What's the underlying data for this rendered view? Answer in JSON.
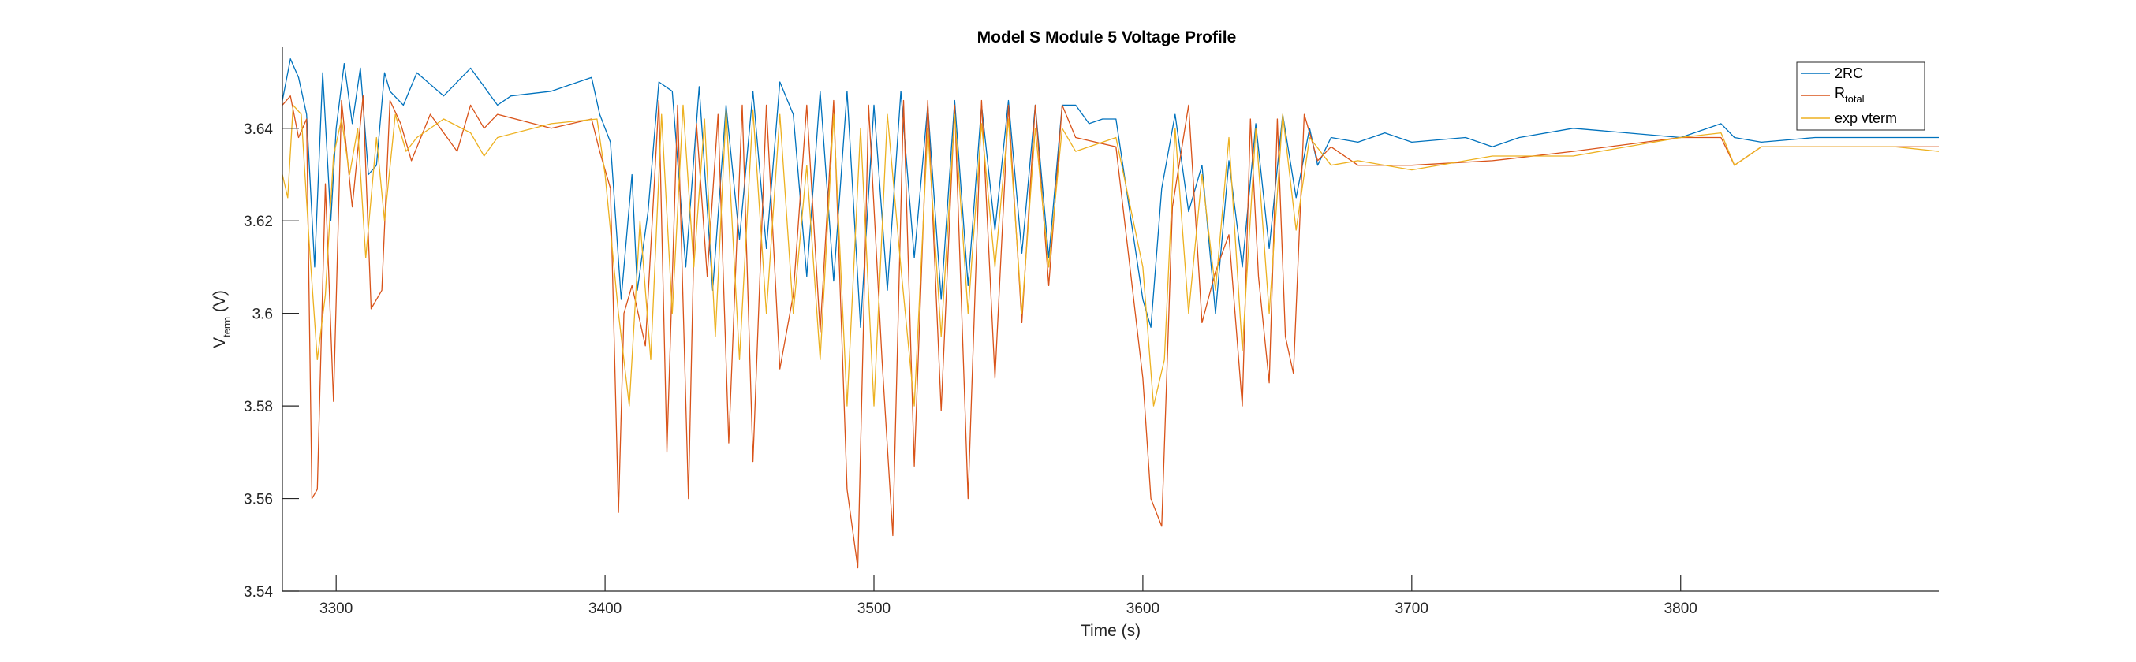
{
  "chart_data": {
    "type": "line",
    "title": "Model S Module 5 Voltage Profile",
    "xlabel": "Time (s)",
    "ylabel": {
      "main": "V",
      "sub": "term",
      "unit": " (V)"
    },
    "xlim": [
      3280,
      3896
    ],
    "ylim": [
      3.54,
      3.6575
    ],
    "x_ticks": [
      3300,
      3400,
      3500,
      3600,
      3700,
      3800
    ],
    "x_tick_labels": [
      "3300",
      "3400",
      "3500",
      "3600",
      "3700",
      "3800"
    ],
    "y_ticks": [
      3.54,
      3.56,
      3.58,
      3.6,
      3.62,
      3.64
    ],
    "y_tick_labels": [
      "3.54",
      "3.56",
      "3.58",
      "3.6",
      "3.62",
      "3.64"
    ],
    "grid": false,
    "legend_position": "top-right",
    "colors": {
      "2RC": "#0072BD",
      "Rtotal": "#D95319",
      "exp": "#EDB120"
    },
    "series": [
      {
        "name": "2RC",
        "legend_main": "2RC",
        "legend_sub": "",
        "color": "#0072BD",
        "x": [
          3280,
          3283,
          3286,
          3289,
          3292,
          3295,
          3298,
          3300,
          3303,
          3306,
          3309,
          3312,
          3315,
          3318,
          3320,
          3325,
          3330,
          3340,
          3350,
          3355,
          3360,
          3365,
          3380,
          3395,
          3398,
          3402,
          3406,
          3410,
          3412,
          3416,
          3420,
          3425,
          3430,
          3435,
          3440,
          3445,
          3450,
          3455,
          3460,
          3465,
          3470,
          3475,
          3480,
          3485,
          3490,
          3495,
          3500,
          3505,
          3510,
          3515,
          3520,
          3525,
          3530,
          3535,
          3540,
          3545,
          3550,
          3555,
          3560,
          3565,
          3570,
          3575,
          3580,
          3585,
          3590,
          3600,
          3603,
          3607,
          3612,
          3617,
          3622,
          3627,
          3632,
          3637,
          3642,
          3647,
          3652,
          3657,
          3662,
          3665,
          3670,
          3680,
          3690,
          3700,
          3720,
          3730,
          3740,
          3760,
          3780,
          3800,
          3815,
          3820,
          3830,
          3850,
          3880,
          3896
        ],
        "y": [
          3.646,
          3.655,
          3.651,
          3.643,
          3.61,
          3.652,
          3.62,
          3.64,
          3.654,
          3.641,
          3.653,
          3.63,
          3.632,
          3.652,
          3.648,
          3.645,
          3.652,
          3.647,
          3.653,
          3.649,
          3.645,
          3.647,
          3.648,
          3.651,
          3.643,
          3.637,
          3.603,
          3.63,
          3.605,
          3.622,
          3.65,
          3.648,
          3.61,
          3.649,
          3.605,
          3.645,
          3.616,
          3.648,
          3.614,
          3.65,
          3.643,
          3.608,
          3.648,
          3.607,
          3.648,
          3.597,
          3.645,
          3.605,
          3.648,
          3.612,
          3.645,
          3.603,
          3.646,
          3.606,
          3.645,
          3.618,
          3.646,
          3.613,
          3.645,
          3.612,
          3.645,
          3.645,
          3.641,
          3.642,
          3.642,
          3.603,
          3.597,
          3.627,
          3.643,
          3.622,
          3.632,
          3.6,
          3.633,
          3.61,
          3.641,
          3.614,
          3.643,
          3.625,
          3.64,
          3.632,
          3.638,
          3.637,
          3.639,
          3.637,
          3.638,
          3.636,
          3.638,
          3.64,
          3.639,
          3.638,
          3.641,
          3.638,
          3.637,
          3.638,
          3.638,
          3.638
        ]
      },
      {
        "name": "Rtotal",
        "legend_main": "R",
        "legend_sub": "total",
        "color": "#D95319",
        "x": [
          3280,
          3283,
          3286,
          3289,
          3291,
          3293,
          3296,
          3299,
          3302,
          3306,
          3310,
          3313,
          3317,
          3320,
          3324,
          3328,
          3335,
          3345,
          3350,
          3355,
          3360,
          3380,
          3395,
          3398,
          3402,
          3405,
          3407,
          3410,
          3415,
          3420,
          3423,
          3427,
          3431,
          3434,
          3438,
          3442,
          3446,
          3451,
          3455,
          3460,
          3465,
          3470,
          3475,
          3480,
          3485,
          3490,
          3494,
          3498,
          3503,
          3507,
          3511,
          3515,
          3520,
          3525,
          3530,
          3535,
          3540,
          3545,
          3550,
          3555,
          3560,
          3565,
          3570,
          3575,
          3590,
          3600,
          3603,
          3607,
          3611,
          3617,
          3622,
          3627,
          3632,
          3637,
          3640,
          3643,
          3647,
          3650,
          3653,
          3656,
          3660,
          3665,
          3670,
          3680,
          3700,
          3730,
          3760,
          3800,
          3815,
          3820,
          3830,
          3850,
          3880,
          3896
        ],
        "y": [
          3.645,
          3.647,
          3.638,
          3.642,
          3.56,
          3.562,
          3.628,
          3.581,
          3.646,
          3.623,
          3.647,
          3.601,
          3.605,
          3.646,
          3.641,
          3.633,
          3.643,
          3.635,
          3.645,
          3.64,
          3.643,
          3.64,
          3.642,
          3.635,
          3.627,
          3.557,
          3.6,
          3.606,
          3.593,
          3.646,
          3.57,
          3.645,
          3.56,
          3.641,
          3.608,
          3.643,
          3.572,
          3.645,
          3.568,
          3.645,
          3.588,
          3.604,
          3.645,
          3.596,
          3.646,
          3.562,
          3.545,
          3.645,
          3.59,
          3.552,
          3.646,
          3.567,
          3.646,
          3.579,
          3.645,
          3.56,
          3.646,
          3.586,
          3.645,
          3.598,
          3.645,
          3.606,
          3.645,
          3.638,
          3.636,
          3.586,
          3.56,
          3.554,
          3.623,
          3.645,
          3.598,
          3.609,
          3.617,
          3.58,
          3.642,
          3.608,
          3.585,
          3.642,
          3.595,
          3.587,
          3.643,
          3.633,
          3.636,
          3.632,
          3.632,
          3.633,
          3.635,
          3.638,
          3.638,
          3.632,
          3.636,
          3.636,
          3.636,
          3.636
        ]
      },
      {
        "name": "exp vterm",
        "legend_main": "exp vterm",
        "legend_sub": "",
        "color": "#EDB120",
        "x": [
          3280,
          3282,
          3284,
          3287,
          3290,
          3293,
          3296,
          3299,
          3302,
          3305,
          3308,
          3311,
          3315,
          3318,
          3322,
          3326,
          3330,
          3340,
          3350,
          3355,
          3360,
          3380,
          3397,
          3400,
          3405,
          3409,
          3413,
          3417,
          3421,
          3425,
          3429,
          3433,
          3437,
          3441,
          3445,
          3450,
          3455,
          3460,
          3465,
          3470,
          3475,
          3480,
          3485,
          3490,
          3495,
          3500,
          3505,
          3510,
          3515,
          3520,
          3525,
          3530,
          3535,
          3540,
          3545,
          3550,
          3555,
          3560,
          3565,
          3570,
          3575,
          3590,
          3600,
          3604,
          3608,
          3612,
          3617,
          3622,
          3627,
          3632,
          3637,
          3642,
          3647,
          3652,
          3657,
          3662,
          3670,
          3680,
          3700,
          3730,
          3760,
          3800,
          3815,
          3820,
          3830,
          3850,
          3880,
          3896
        ],
        "y": [
          3.63,
          3.625,
          3.645,
          3.643,
          3.615,
          3.59,
          3.604,
          3.634,
          3.642,
          3.63,
          3.64,
          3.612,
          3.638,
          3.62,
          3.643,
          3.635,
          3.638,
          3.642,
          3.639,
          3.634,
          3.638,
          3.641,
          3.642,
          3.63,
          3.6,
          3.58,
          3.62,
          3.59,
          3.643,
          3.6,
          3.645,
          3.61,
          3.642,
          3.595,
          3.644,
          3.59,
          3.644,
          3.6,
          3.643,
          3.6,
          3.632,
          3.59,
          3.643,
          3.58,
          3.64,
          3.58,
          3.643,
          3.61,
          3.58,
          3.64,
          3.595,
          3.643,
          3.6,
          3.641,
          3.61,
          3.642,
          3.6,
          3.64,
          3.61,
          3.64,
          3.635,
          3.638,
          3.61,
          3.58,
          3.59,
          3.64,
          3.6,
          3.63,
          3.605,
          3.638,
          3.592,
          3.64,
          3.6,
          3.643,
          3.618,
          3.638,
          3.632,
          3.633,
          3.631,
          3.634,
          3.634,
          3.638,
          3.639,
          3.632,
          3.636,
          3.636,
          3.636,
          3.635
        ]
      }
    ]
  }
}
